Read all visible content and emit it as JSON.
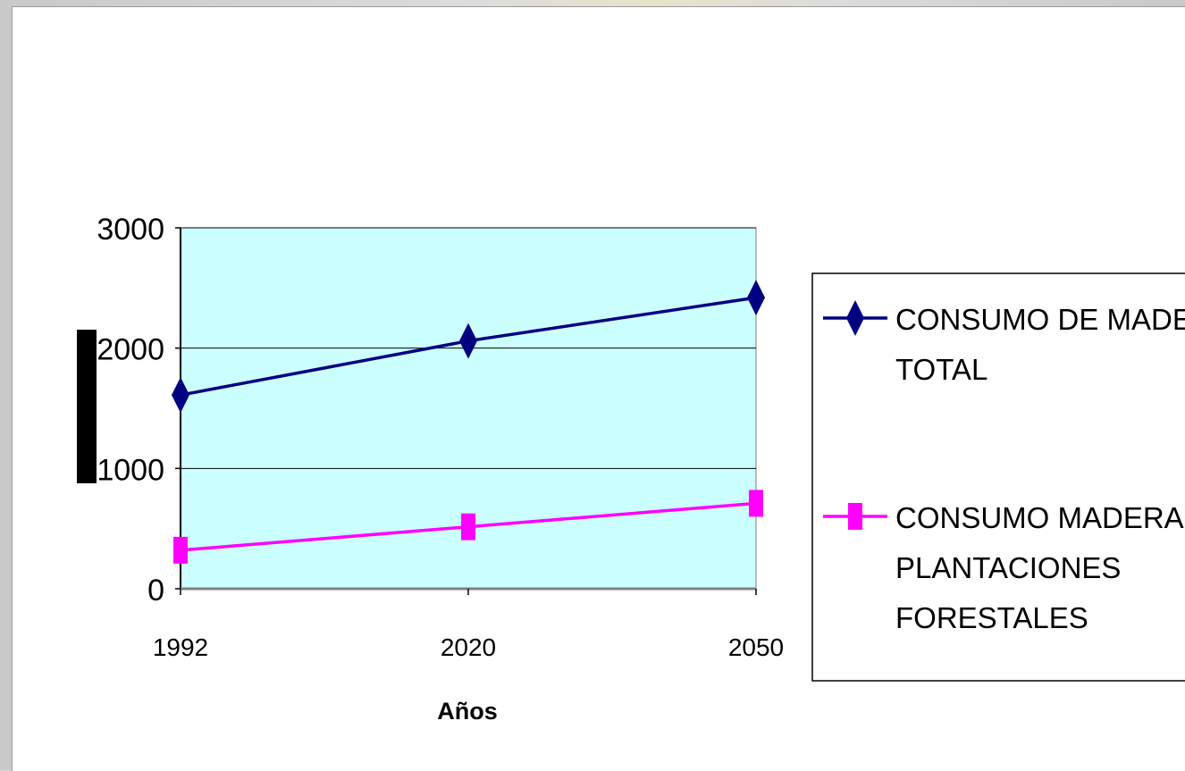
{
  "chart_data": {
    "type": "line",
    "categories": [
      "1992",
      "2020",
      "2050"
    ],
    "series": [
      {
        "name": "CONSUMO DE MADERA TOTAL",
        "values": [
          1610,
          2060,
          2420
        ],
        "color": "#000080",
        "marker": "diamond"
      },
      {
        "name": "CONSUMO MADERA DE PLANTACIONES FORESTALES",
        "values": [
          320,
          515,
          710
        ],
        "color": "#ff00ff",
        "marker": "square"
      }
    ],
    "xlabel": "Años",
    "ylabel": "",
    "ylim": [
      0,
      3000
    ],
    "yticks": [
      "0",
      "1000",
      "2000",
      "3000"
    ],
    "grid": true,
    "plot_background": "#ccffff",
    "legend_position": "right"
  }
}
